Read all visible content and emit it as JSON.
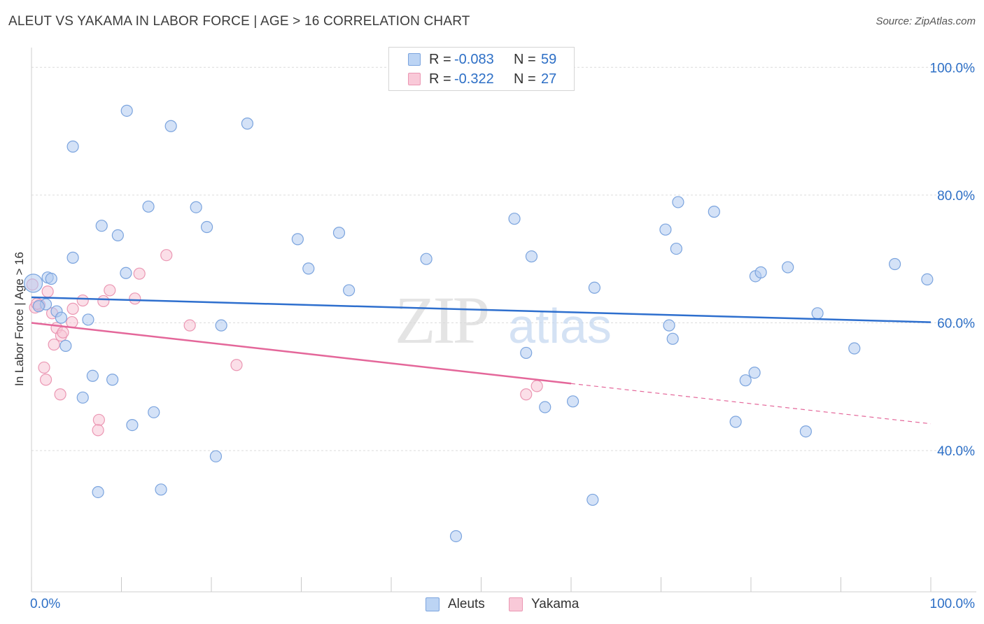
{
  "header": {
    "title": "ALEUT VS YAKAMA IN LABOR FORCE | AGE > 16 CORRELATION CHART",
    "source": "Source: ZipAtlas.com"
  },
  "watermark": {
    "zip": "ZIP",
    "atlas": "atlas"
  },
  "legend": {
    "r_label": "R =",
    "n_label": "N =",
    "rows": [
      {
        "r": "-0.083",
        "n": "59",
        "fill": "#bcd4f4",
        "stroke": "#7ba4de"
      },
      {
        "r": "-0.322",
        "n": "27",
        "fill": "#f9c9d8",
        "stroke": "#eb97b3"
      }
    ]
  },
  "bottom_legend": [
    {
      "label": "Aleuts",
      "fill": "#bcd4f4",
      "stroke": "#7ba4de"
    },
    {
      "label": "Yakama",
      "fill": "#f9c9d8",
      "stroke": "#eb97b3"
    }
  ],
  "colors": {
    "aleut_point_fill": "rgba(176,202,240,0.55)",
    "aleut_point_stroke": "#7ba4de",
    "aleut_line": "#2e6fce",
    "yakama_point_fill": "rgba(248,196,214,0.55)",
    "yakama_point_stroke": "#eb97b3",
    "yakama_line": "#e4679a",
    "tick_label": "#2d6fc6",
    "grid": "#dcdcdc"
  },
  "chart_data": {
    "type": "scatter",
    "title": "ALEUT VS YAKAMA IN LABOR FORCE | AGE > 16 CORRELATION CHART",
    "xlabel": "",
    "ylabel": "In Labor Force | Age > 16",
    "xlim": [
      0,
      100
    ],
    "ylim": [
      18,
      102
    ],
    "x_tick_labels": [
      "0.0%",
      "100.0%"
    ],
    "y_ticks": [
      40,
      60,
      80,
      100
    ],
    "y_tick_labels": [
      "40.0%",
      "60.0%",
      "80.0%",
      "100.0%"
    ],
    "grid": true,
    "legend_position": "top-center",
    "series": [
      {
        "name": "Aleuts",
        "r": -0.083,
        "n": 59,
        "trend": {
          "x": [
            0,
            100
          ],
          "y": [
            64.0,
            60.1
          ]
        },
        "points": [
          [
            0.2,
            66.2
          ],
          [
            1.6,
            62.9
          ],
          [
            1.8,
            67.1
          ],
          [
            2.2,
            66.9
          ],
          [
            2.8,
            61.8
          ],
          [
            3.3,
            60.8
          ],
          [
            3.8,
            56.4
          ],
          [
            4.6,
            87.6
          ],
          [
            4.6,
            70.2
          ],
          [
            5.7,
            48.3
          ],
          [
            6.3,
            60.5
          ],
          [
            6.8,
            51.7
          ],
          [
            7.4,
            33.5
          ],
          [
            7.8,
            75.2
          ],
          [
            9.0,
            51.1
          ],
          [
            9.6,
            73.7
          ],
          [
            10.6,
            93.2
          ],
          [
            10.5,
            67.8
          ],
          [
            11.2,
            44.0
          ],
          [
            13.0,
            78.2
          ],
          [
            13.6,
            46.0
          ],
          [
            14.4,
            33.9
          ],
          [
            15.5,
            90.8
          ],
          [
            18.3,
            78.1
          ],
          [
            19.5,
            75.0
          ],
          [
            20.5,
            39.1
          ],
          [
            21.1,
            59.6
          ],
          [
            24.0,
            91.2
          ],
          [
            29.6,
            73.1
          ],
          [
            30.8,
            68.5
          ],
          [
            34.2,
            74.1
          ],
          [
            35.3,
            65.1
          ],
          [
            43.9,
            70.0
          ],
          [
            47.2,
            26.6
          ],
          [
            53.7,
            76.3
          ],
          [
            55.6,
            70.4
          ],
          [
            57.1,
            46.8
          ],
          [
            55.0,
            55.3
          ],
          [
            60.2,
            47.7
          ],
          [
            62.6,
            65.5
          ],
          [
            62.4,
            32.3
          ],
          [
            70.5,
            74.6
          ],
          [
            71.7,
            71.6
          ],
          [
            70.9,
            59.6
          ],
          [
            71.3,
            57.5
          ],
          [
            71.9,
            78.9
          ],
          [
            75.9,
            77.4
          ],
          [
            78.3,
            44.5
          ],
          [
            79.4,
            51.0
          ],
          [
            80.4,
            52.2
          ],
          [
            80.5,
            67.3
          ],
          [
            81.1,
            67.9
          ],
          [
            84.1,
            68.7
          ],
          [
            86.1,
            43.0
          ],
          [
            87.4,
            61.5
          ],
          [
            91.5,
            56.0
          ],
          [
            96.0,
            69.2
          ],
          [
            99.6,
            66.8
          ],
          [
            0.8,
            62.6
          ]
        ]
      },
      {
        "name": "Yakama",
        "r": -0.322,
        "n": 27,
        "trend": {
          "x": [
            0,
            60
          ],
          "y": [
            60.0,
            50.5
          ],
          "dashed_extension": {
            "x": [
              60,
              100
            ],
            "y": [
              50.5,
              44.2
            ]
          }
        },
        "points": [
          [
            0.4,
            62.4
          ],
          [
            0.9,
            62.8
          ],
          [
            1.4,
            53.0
          ],
          [
            1.6,
            51.1
          ],
          [
            1.8,
            64.9
          ],
          [
            2.3,
            61.5
          ],
          [
            2.5,
            56.6
          ],
          [
            2.8,
            59.2
          ],
          [
            3.2,
            48.8
          ],
          [
            3.3,
            58.0
          ],
          [
            3.5,
            58.5
          ],
          [
            4.5,
            60.1
          ],
          [
            4.6,
            62.2
          ],
          [
            5.7,
            63.5
          ],
          [
            7.5,
            44.8
          ],
          [
            7.4,
            43.2
          ],
          [
            8.0,
            63.4
          ],
          [
            8.7,
            65.1
          ],
          [
            11.5,
            63.8
          ],
          [
            12.0,
            67.7
          ],
          [
            15.0,
            70.6
          ],
          [
            17.6,
            59.6
          ],
          [
            22.8,
            53.4
          ],
          [
            55.0,
            48.8
          ],
          [
            56.2,
            50.1
          ],
          [
            0.1,
            66.0
          ],
          [
            0.6,
            63.0
          ]
        ]
      }
    ]
  }
}
